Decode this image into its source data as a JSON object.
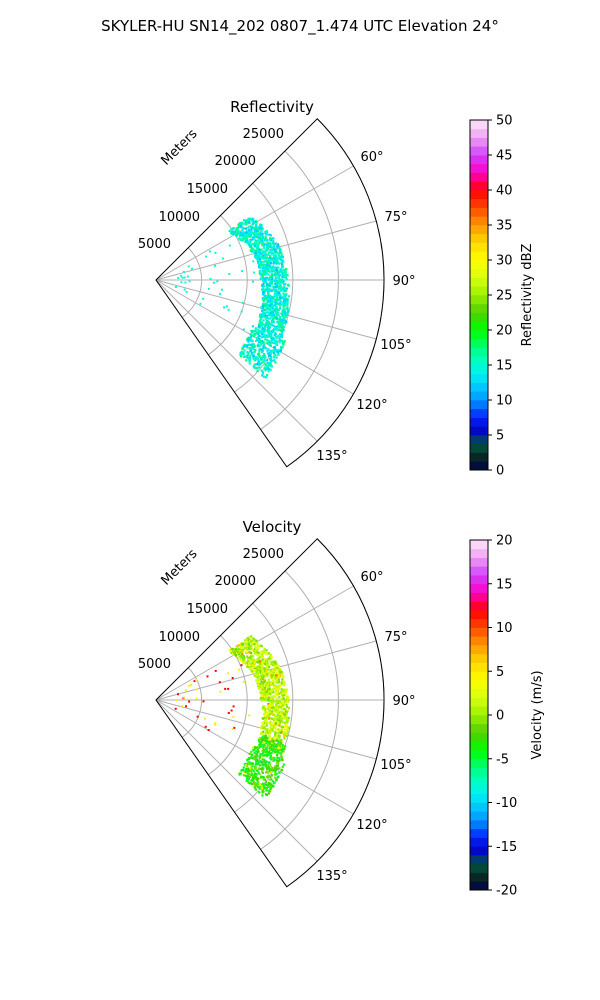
{
  "figure_title": "SKYLER-HU  SN14_202  0807_1.474 UTC Elevation 24°",
  "chart_data": [
    {
      "type": "polar-sector",
      "title": "Reflectivity",
      "radial_label": "Meters",
      "radial_ticks": [
        "5000",
        "10000",
        "15000",
        "20000",
        "25000"
      ],
      "angle_ticks": [
        "60°",
        "75°",
        "90°",
        "105°",
        "120°",
        "135°"
      ],
      "colorbar": {
        "label": "Reflectivity dBZ",
        "ticks": [
          "0",
          "5",
          "10",
          "15",
          "20",
          "25",
          "30",
          "35",
          "40",
          "45",
          "50"
        ],
        "min": 0,
        "max": 50
      }
    },
    {
      "type": "polar-sector",
      "title": "Velocity",
      "radial_label": "Meters",
      "radial_ticks": [
        "5000",
        "10000",
        "15000",
        "20000",
        "25000"
      ],
      "angle_ticks": [
        "60°",
        "75°",
        "90°",
        "105°",
        "120°",
        "135°"
      ],
      "colorbar": {
        "label": "Velocity (m/s)",
        "ticks": [
          "-20",
          "-15",
          "-10",
          "-5",
          "0",
          "5",
          "10",
          "15",
          "20"
        ],
        "min": -20,
        "max": 20
      }
    }
  ]
}
